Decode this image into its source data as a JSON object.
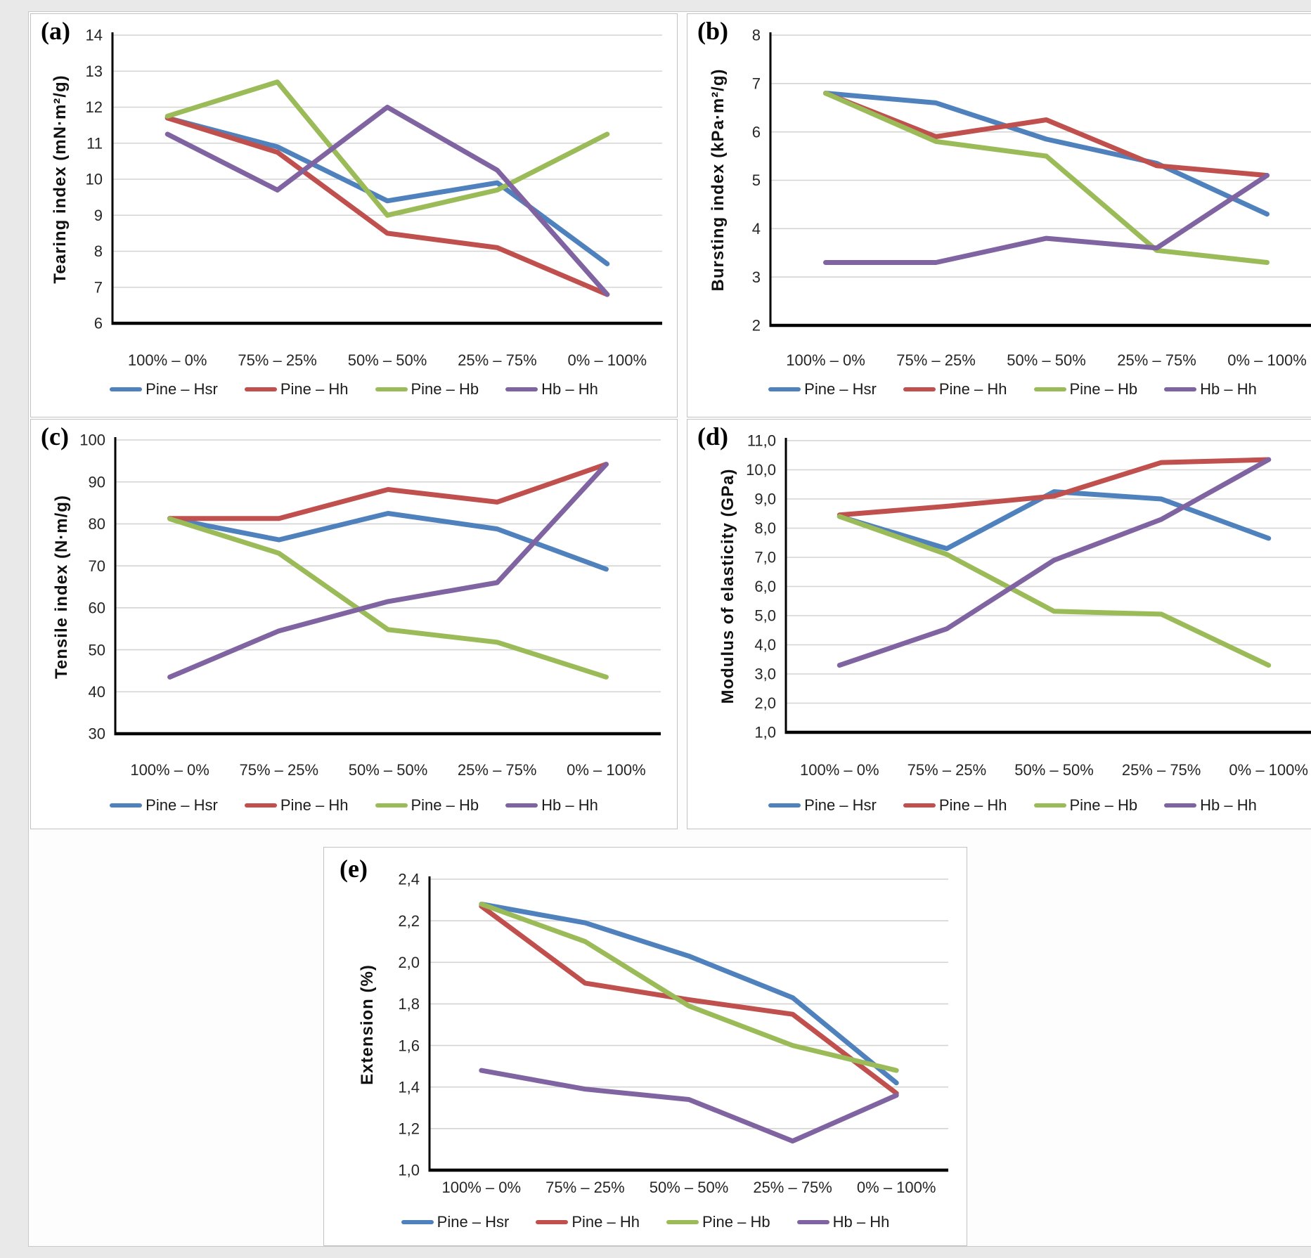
{
  "figure": {
    "description_panels": [
      "(a)",
      "(b)",
      "(c)",
      "(d)",
      "(e)"
    ]
  },
  "legend": {
    "series": [
      {
        "name": "Pine – Hsr",
        "color": "#4F81BD"
      },
      {
        "name": "Pine – Hh",
        "color": "#C0504D"
      },
      {
        "name": "Pine – Hb",
        "color": "#9BBB59"
      },
      {
        "name": "Hb – Hh",
        "color": "#8064A2"
      }
    ]
  },
  "axis_colors": {
    "gridline": "#D4D4D4",
    "axis_line": "#000000",
    "tick_text": "#262626"
  },
  "chart_data": [
    {
      "type": "line",
      "panel_label": "(a)",
      "ylabel": "Tearing index (mN·m²/g)",
      "ylim": [
        6,
        14
      ],
      "ytick_values": [
        6,
        7,
        8,
        9,
        10,
        11,
        12,
        13,
        14
      ],
      "ytick_labels": [
        "6",
        "7",
        "8",
        "9",
        "10",
        "11",
        "12",
        "13",
        "14"
      ],
      "categories": [
        "100% – 0%",
        "75% – 25%",
        "50% – 50%",
        "25% – 75%",
        "0% – 100%"
      ],
      "grid": true,
      "legend_position": "bottom",
      "series": [
        {
          "name": "Pine – Hsr",
          "values": [
            11.7,
            10.9,
            9.4,
            9.9,
            7.65
          ]
        },
        {
          "name": "Pine – Hh",
          "values": [
            11.7,
            10.75,
            8.5,
            8.1,
            6.8
          ]
        },
        {
          "name": "Pine – Hb",
          "values": [
            11.75,
            12.7,
            9.0,
            9.7,
            11.25
          ]
        },
        {
          "name": "Hb – Hh",
          "values": [
            11.25,
            9.7,
            12.0,
            10.25,
            6.8
          ]
        }
      ]
    },
    {
      "type": "line",
      "panel_label": "(b)",
      "ylabel": "Bursting index (kPa·m²/g)",
      "ylim": [
        2,
        8
      ],
      "ytick_values": [
        2,
        3,
        4,
        5,
        6,
        7,
        8
      ],
      "ytick_labels": [
        "2",
        "3",
        "4",
        "5",
        "6",
        "7",
        "8"
      ],
      "categories": [
        "100% – 0%",
        "75% – 25%",
        "50% – 50%",
        "25% – 75%",
        "0% – 100%"
      ],
      "grid": true,
      "legend_position": "bottom",
      "series": [
        {
          "name": "Pine – Hsr",
          "values": [
            6.8,
            6.6,
            5.85,
            5.35,
            4.3
          ]
        },
        {
          "name": "Pine – Hh",
          "values": [
            6.8,
            5.9,
            6.25,
            5.3,
            5.1
          ]
        },
        {
          "name": "Pine – Hb",
          "values": [
            6.8,
            5.8,
            5.5,
            3.55,
            3.3
          ]
        },
        {
          "name": "Hb – Hh",
          "values": [
            3.3,
            3.3,
            3.8,
            3.6,
            5.1
          ]
        }
      ]
    },
    {
      "type": "line",
      "panel_label": "(c)",
      "ylabel": "Tensile index (N·m/g)",
      "ylim": [
        30,
        100
      ],
      "ytick_values": [
        30,
        40,
        50,
        60,
        70,
        80,
        90,
        100
      ],
      "ytick_labels": [
        "30",
        "40",
        "50",
        "60",
        "70",
        "80",
        "90",
        "100"
      ],
      "categories": [
        "100% – 0%",
        "75% – 25%",
        "50% – 50%",
        "25% – 75%",
        "0% – 100%"
      ],
      "grid": true,
      "legend_position": "bottom",
      "series": [
        {
          "name": "Pine – Hsr",
          "values": [
            81.3,
            76.2,
            82.5,
            78.8,
            69.2
          ]
        },
        {
          "name": "Pine – Hh",
          "values": [
            81.3,
            81.3,
            88.2,
            85.2,
            94.2
          ]
        },
        {
          "name": "Pine – Hb",
          "values": [
            81.2,
            73.0,
            54.8,
            51.8,
            43.5
          ]
        },
        {
          "name": "Hb – Hh",
          "values": [
            43.5,
            54.5,
            61.5,
            66.0,
            94.2
          ]
        }
      ]
    },
    {
      "type": "line",
      "panel_label": "(d)",
      "ylabel": "Modulus of elasticity (GPa)",
      "ylim": [
        1,
        11
      ],
      "ytick_values": [
        1,
        2,
        3,
        4,
        5,
        6,
        7,
        8,
        9,
        10,
        11
      ],
      "ytick_labels": [
        "1,0",
        "2,0",
        "3,0",
        "4,0",
        "5,0",
        "6,0",
        "7,0",
        "8,0",
        "9,0",
        "10,0",
        "11,0"
      ],
      "categories": [
        "100% – 0%",
        "75% – 25%",
        "50% – 50%",
        "25% – 75%",
        "0% – 100%"
      ],
      "grid": true,
      "legend_position": "bottom",
      "series": [
        {
          "name": "Pine – Hsr",
          "values": [
            8.4,
            7.3,
            9.25,
            9.0,
            7.65
          ]
        },
        {
          "name": "Pine – Hh",
          "values": [
            8.45,
            8.75,
            9.1,
            10.25,
            10.35
          ]
        },
        {
          "name": "Pine – Hb",
          "values": [
            8.4,
            7.1,
            5.15,
            5.05,
            3.3
          ]
        },
        {
          "name": "Hb – Hh",
          "values": [
            3.3,
            4.55,
            6.9,
            8.3,
            10.35
          ]
        }
      ]
    },
    {
      "type": "line",
      "panel_label": "(e)",
      "ylabel": "Extension (%)",
      "ylim": [
        1.0,
        2.4
      ],
      "ytick_values": [
        1.0,
        1.2,
        1.4,
        1.6,
        1.8,
        2.0,
        2.2,
        2.4
      ],
      "ytick_labels": [
        "1,0",
        "1,2",
        "1,4",
        "1,6",
        "1,8",
        "2,0",
        "2,2",
        "2,4"
      ],
      "categories": [
        "100% – 0%",
        "75% – 25%",
        "50% – 50%",
        "25% – 75%",
        "0% – 100%"
      ],
      "grid": true,
      "legend_position": "bottom",
      "series": [
        {
          "name": "Pine – Hsr",
          "values": [
            2.28,
            2.19,
            2.03,
            1.83,
            1.42
          ]
        },
        {
          "name": "Pine – Hh",
          "values": [
            2.27,
            1.9,
            1.82,
            1.75,
            1.37
          ]
        },
        {
          "name": "Pine – Hb",
          "values": [
            2.28,
            2.1,
            1.79,
            1.6,
            1.48
          ]
        },
        {
          "name": "Hb – Hh",
          "values": [
            1.48,
            1.39,
            1.34,
            1.14,
            1.36
          ]
        }
      ]
    }
  ]
}
